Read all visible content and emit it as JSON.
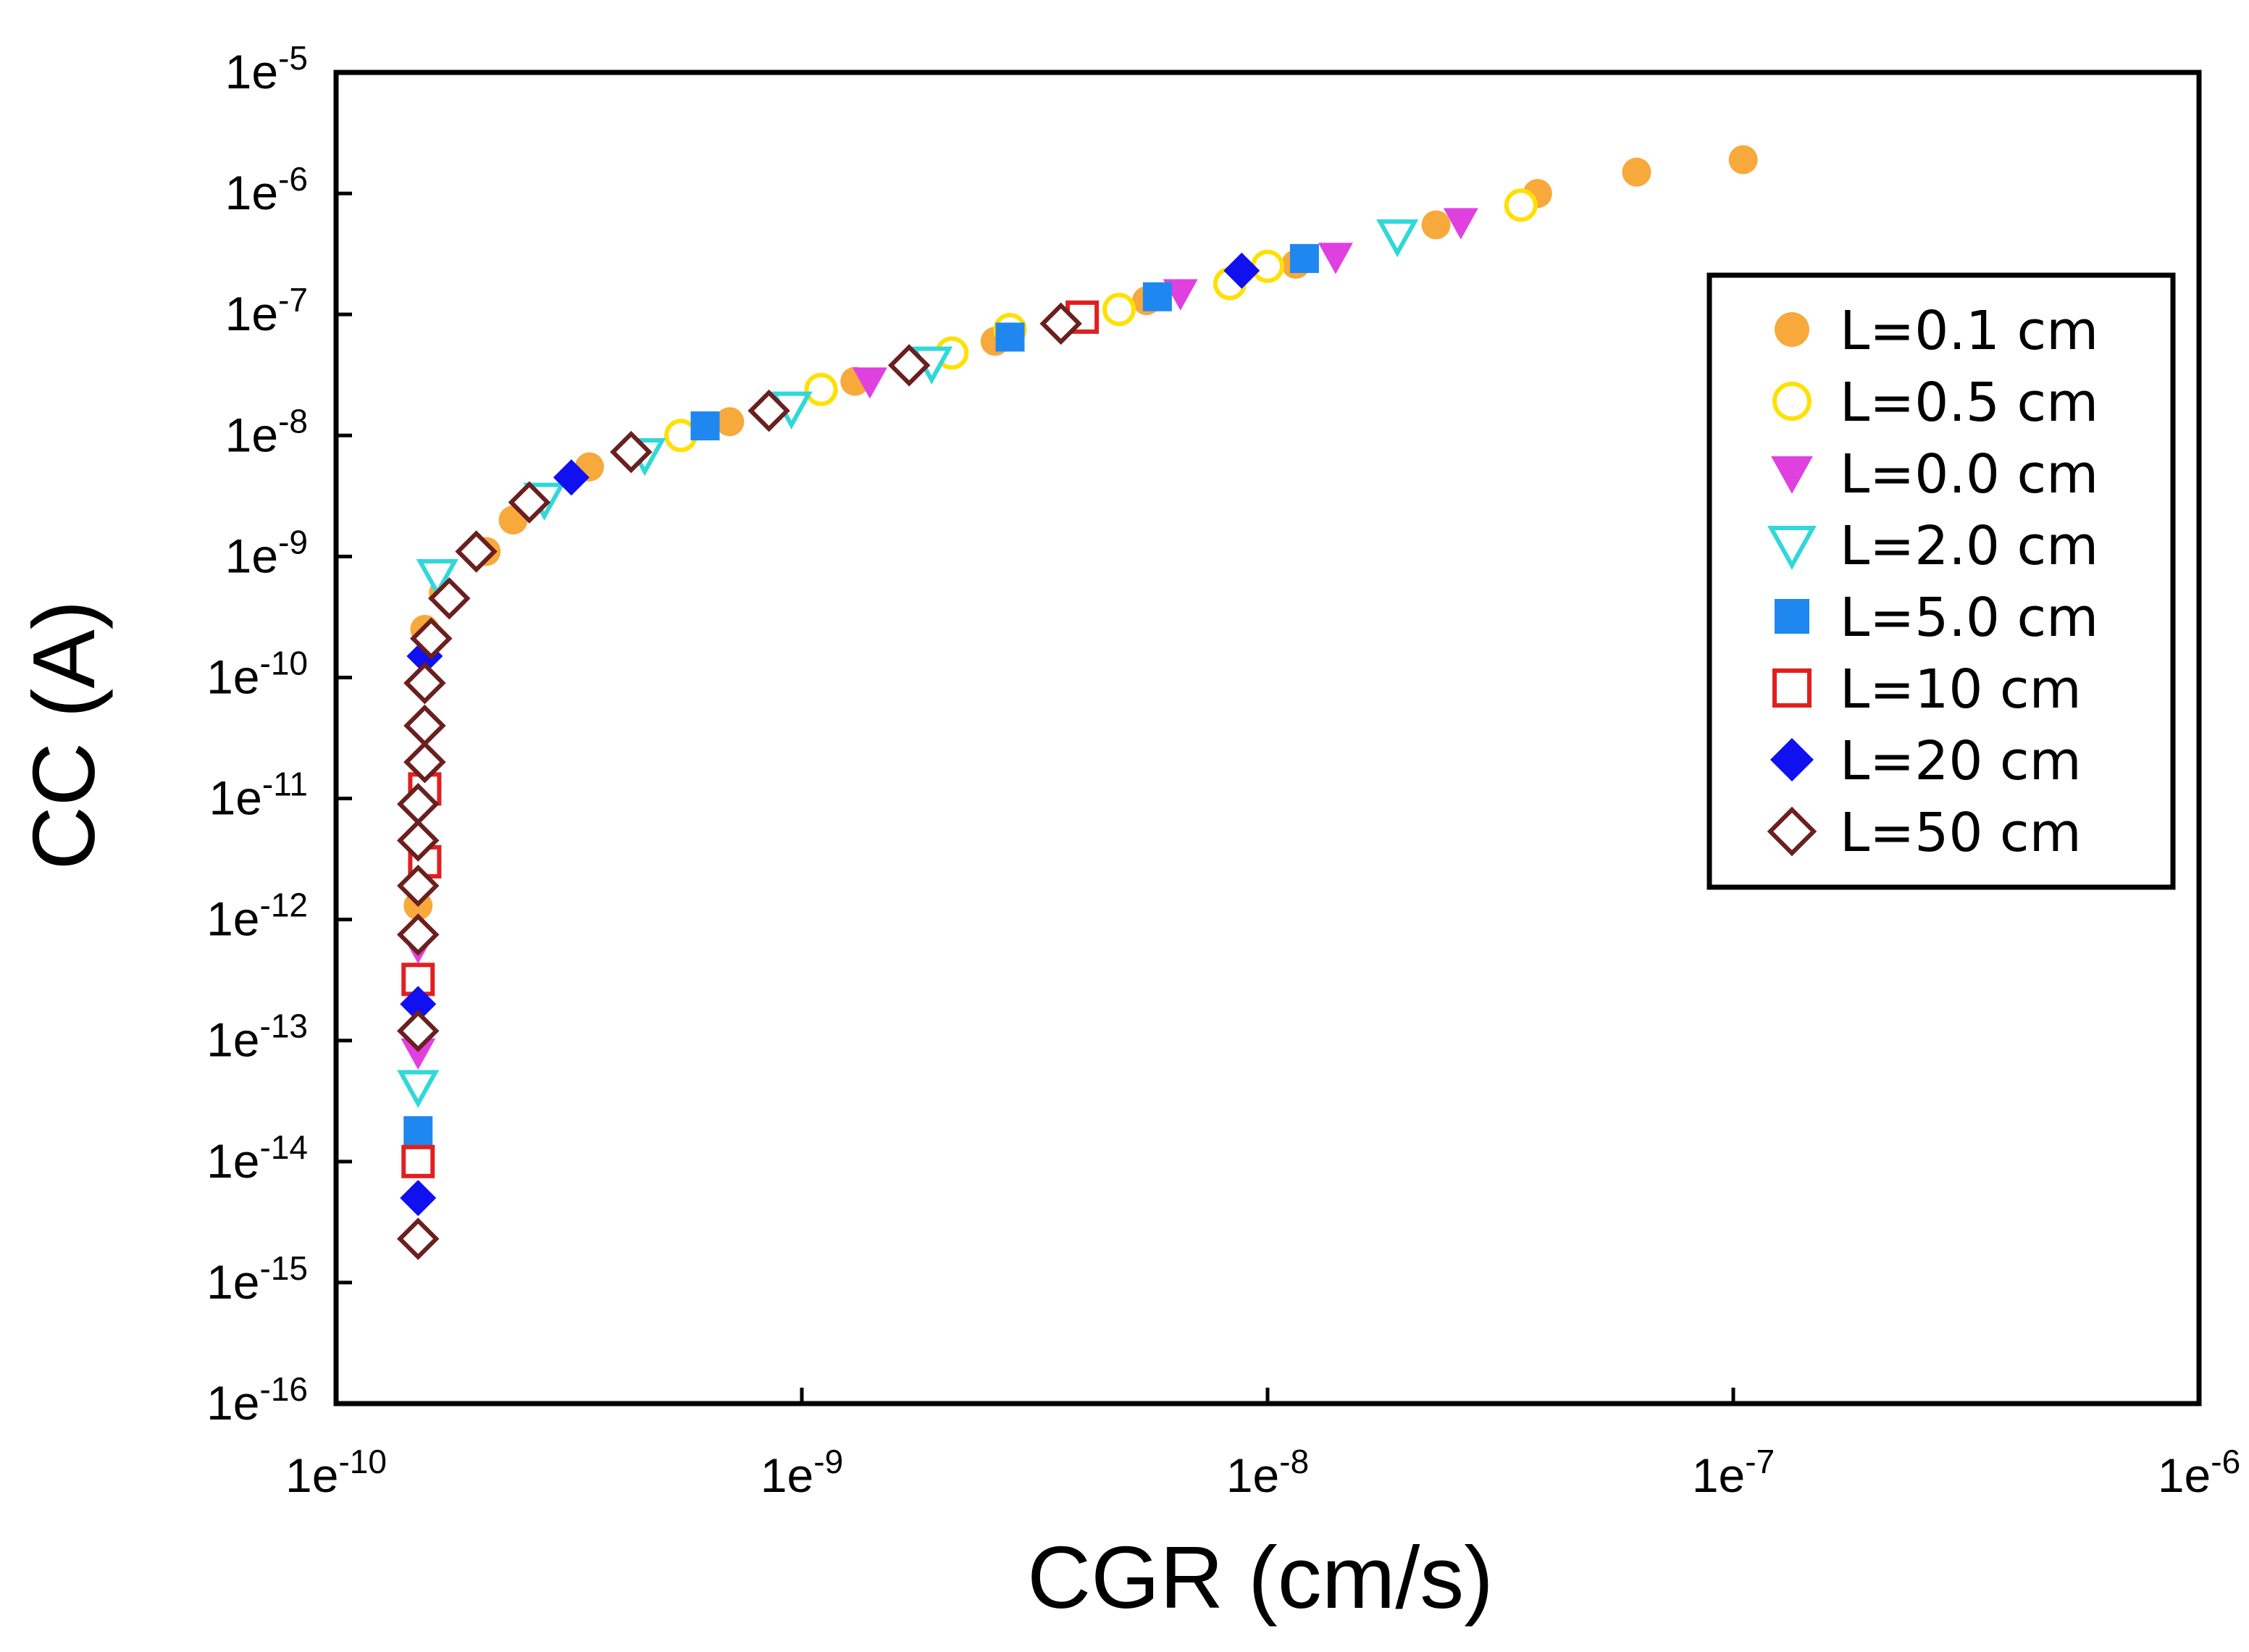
{
  "chart_data": {
    "type": "scatter",
    "xlabel": "CGR (cm/s)",
    "ylabel": "CC (A)",
    "xscale": "log",
    "yscale": "log",
    "xlim": [
      1e-10,
      1e-06
    ],
    "ylim": [
      1e-16,
      1e-05
    ],
    "grid": false,
    "legend_position": "right",
    "x_tick_labels": [
      {
        "value": 1e-10,
        "base": "1e",
        "exp": "-10"
      },
      {
        "value": 1e-09,
        "base": "1e",
        "exp": "-9"
      },
      {
        "value": 1e-08,
        "base": "1e",
        "exp": "-8"
      },
      {
        "value": 1e-07,
        "base": "1e",
        "exp": "-7"
      },
      {
        "value": 1e-06,
        "base": "1e",
        "exp": "-6"
      }
    ],
    "y_tick_labels": [
      {
        "value": 1e-05,
        "base": "1e",
        "exp": "-5"
      },
      {
        "value": 1e-06,
        "base": "1e",
        "exp": "-6"
      },
      {
        "value": 1e-07,
        "base": "1e",
        "exp": "-7"
      },
      {
        "value": 1e-08,
        "base": "1e",
        "exp": "-8"
      },
      {
        "value": 1e-09,
        "base": "1e",
        "exp": "-9"
      },
      {
        "value": 1e-10,
        "base": "1e",
        "exp": "-10"
      },
      {
        "value": 1e-11,
        "base": "1e",
        "exp": "-11"
      },
      {
        "value": 1e-12,
        "base": "1e",
        "exp": "-12"
      },
      {
        "value": 1e-13,
        "base": "1e",
        "exp": "-13"
      },
      {
        "value": 1e-14,
        "base": "1e",
        "exp": "-14"
      },
      {
        "value": 1e-15,
        "base": "1e",
        "exp": "-15"
      },
      {
        "value": 1e-16,
        "base": "1e",
        "exp": "-16"
      }
    ],
    "series": [
      {
        "name": "L=0.1 cm",
        "marker": "circle",
        "fill": true,
        "color": "#F7A93B",
        "points": [
          [
            1.5e-10,
            1.3e-12
          ],
          [
            1.55e-10,
            2.5e-10
          ],
          [
            1.7e-10,
            5e-10
          ],
          [
            2.1e-10,
            1.1e-09
          ],
          [
            2.4e-10,
            2e-09
          ],
          [
            3.5e-10,
            5.5e-09
          ],
          [
            7e-10,
            1.3e-08
          ],
          [
            1.3e-09,
            2.8e-08
          ],
          [
            2.6e-09,
            6e-08
          ],
          [
            5.5e-09,
            1.3e-07
          ],
          [
            1.15e-08,
            2.6e-07
          ],
          [
            2.3e-08,
            5.5e-07
          ],
          [
            3.8e-08,
            1e-06
          ],
          [
            6.2e-08,
            1.5e-06
          ],
          [
            1.05e-07,
            1.9e-06
          ]
        ]
      },
      {
        "name": "L=0.5 cm",
        "marker": "circle",
        "fill": false,
        "color": "#FFE000",
        "points": [
          [
            5.5e-10,
            1e-08
          ],
          [
            1.1e-09,
            2.4e-08
          ],
          [
            2.1e-09,
            4.8e-08
          ],
          [
            2.8e-09,
            7.5e-08
          ],
          [
            4.8e-09,
            1.1e-07
          ],
          [
            8.3e-09,
            1.8e-07
          ],
          [
            1e-08,
            2.5e-07
          ],
          [
            3.5e-08,
            8e-07
          ]
        ]
      },
      {
        "name": "L=0.0 cm",
        "marker": "triangle-down",
        "fill": true,
        "color": "#E040E0",
        "points": [
          [
            1.5e-10,
            8e-14
          ],
          [
            1.5e-10,
            6e-13
          ],
          [
            1.4e-09,
            2.8e-08
          ],
          [
            6.5e-09,
            1.5e-07
          ],
          [
            1.4e-08,
            3e-07
          ],
          [
            2.6e-08,
            5.8e-07
          ]
        ]
      },
      {
        "name": "L=2.0 cm",
        "marker": "triangle-down",
        "fill": false,
        "color": "#30D8D8",
        "points": [
          [
            1.5e-10,
            4.2e-14
          ],
          [
            1.65e-10,
            7e-10
          ],
          [
            2.8e-10,
            3e-09
          ],
          [
            4.6e-10,
            7e-09
          ],
          [
            9.5e-10,
            1.7e-08
          ],
          [
            1.9e-09,
            4e-08
          ],
          [
            1.9e-08,
            4.5e-07
          ]
        ]
      },
      {
        "name": "L=5.0 cm",
        "marker": "square",
        "fill": true,
        "color": "#1E88F0",
        "points": [
          [
            1.5e-10,
            1.8e-14
          ],
          [
            6.2e-10,
            1.2e-08
          ],
          [
            2.8e-09,
            6.5e-08
          ],
          [
            5.8e-09,
            1.4e-07
          ],
          [
            1.2e-08,
            2.9e-07
          ]
        ]
      },
      {
        "name": "L=10 cm",
        "marker": "square",
        "fill": false,
        "color": "#E02020",
        "points": [
          [
            1.5e-10,
            1e-14
          ],
          [
            1.5e-10,
            3.2e-13
          ],
          [
            1.55e-10,
            3e-12
          ],
          [
            1.55e-10,
            1.2e-11
          ],
          [
            4e-09,
            9.5e-08
          ]
        ]
      },
      {
        "name": "L=20 cm",
        "marker": "diamond",
        "fill": true,
        "color": "#1010F0",
        "points": [
          [
            1.5e-10,
            5e-15
          ],
          [
            1.5e-10,
            2e-13
          ],
          [
            1.55e-10,
            1.5e-10
          ],
          [
            3.2e-10,
            4.5e-09
          ],
          [
            8.8e-09,
            2.3e-07
          ]
        ]
      },
      {
        "name": "L=50 cm",
        "marker": "diamond",
        "fill": false,
        "color": "#6B1F1F",
        "points": [
          [
            1.5e-10,
            2.3e-15
          ],
          [
            1.5e-10,
            1.2e-13
          ],
          [
            1.5e-10,
            7.5e-13
          ],
          [
            1.5e-10,
            1.9e-12
          ],
          [
            1.5e-10,
            4.5e-12
          ],
          [
            1.5e-10,
            9e-12
          ],
          [
            1.55e-10,
            2e-11
          ],
          [
            1.55e-10,
            4e-11
          ],
          [
            1.55e-10,
            9e-11
          ],
          [
            1.6e-10,
            2.1e-10
          ],
          [
            1.75e-10,
            4.5e-10
          ],
          [
            2e-10,
            1.1e-09
          ],
          [
            2.6e-10,
            2.8e-09
          ],
          [
            4.3e-10,
            7.3e-09
          ],
          [
            8.5e-10,
            1.6e-08
          ],
          [
            1.7e-09,
            3.8e-08
          ],
          [
            3.6e-09,
            8.4e-08
          ]
        ]
      }
    ]
  }
}
